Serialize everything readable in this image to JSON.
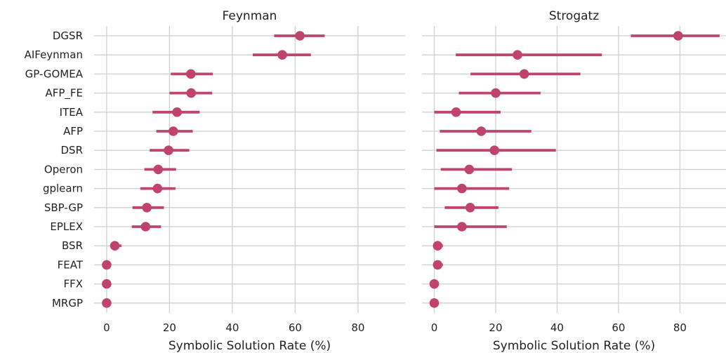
{
  "chart_data": {
    "type": "pointrange",
    "categories": [
      "DGSR",
      "AIFeynman",
      "GP-GOMEA",
      "AFP_FE",
      "ITEA",
      "AFP",
      "DSR",
      "Operon",
      "gplearn",
      "SBP-GP",
      "EPLEX",
      "BSR",
      "FEAT",
      "FFX",
      "MRGP"
    ],
    "xlabel": "Symbolic Solution Rate (%)",
    "xticks": [
      0,
      20,
      40,
      60,
      80
    ],
    "xlim": [
      -4,
      95
    ],
    "color": "#c0446a",
    "grid": true,
    "panels": [
      {
        "title": "Feynman",
        "points": [
          {
            "method": "DGSR",
            "value": 61.5,
            "low": 53.3,
            "high": 69.4
          },
          {
            "method": "AIFeynman",
            "value": 55.9,
            "low": 46.5,
            "high": 65.0
          },
          {
            "method": "GP-GOMEA",
            "value": 26.8,
            "low": 20.4,
            "high": 33.8
          },
          {
            "method": "AFP_FE",
            "value": 26.9,
            "low": 20.0,
            "high": 33.6
          },
          {
            "method": "ITEA",
            "value": 22.4,
            "low": 14.6,
            "high": 29.6
          },
          {
            "method": "AFP",
            "value": 21.2,
            "low": 15.8,
            "high": 27.4
          },
          {
            "method": "DSR",
            "value": 19.7,
            "low": 13.7,
            "high": 26.3
          },
          {
            "method": "Operon",
            "value": 16.4,
            "low": 12.0,
            "high": 22.1
          },
          {
            "method": "gplearn",
            "value": 16.2,
            "low": 10.7,
            "high": 21.9
          },
          {
            "method": "SBP-GP",
            "value": 12.8,
            "low": 8.2,
            "high": 18.2
          },
          {
            "method": "EPLEX",
            "value": 12.4,
            "low": 8.0,
            "high": 17.3
          },
          {
            "method": "BSR",
            "value": 2.6,
            "low": 1.6,
            "high": 4.7
          },
          {
            "method": "FEAT",
            "value": 0.0,
            "low": 0.0,
            "high": 0.0
          },
          {
            "method": "FFX",
            "value": 0.0,
            "low": 0.0,
            "high": 0.0
          },
          {
            "method": "MRGP",
            "value": 0.0,
            "low": 0.0,
            "high": 0.0
          }
        ]
      },
      {
        "title": "Strogatz",
        "points": [
          {
            "method": "DGSR",
            "value": 79.4,
            "low": 64.0,
            "high": 92.9
          },
          {
            "method": "AIFeynman",
            "value": 27.1,
            "low": 7.0,
            "high": 54.6
          },
          {
            "method": "GP-GOMEA",
            "value": 29.3,
            "low": 11.8,
            "high": 47.6
          },
          {
            "method": "AFP_FE",
            "value": 20.0,
            "low": 8.0,
            "high": 34.6
          },
          {
            "method": "ITEA",
            "value": 7.1,
            "low": 0.0,
            "high": 21.6
          },
          {
            "method": "AFP",
            "value": 15.3,
            "low": 1.8,
            "high": 31.6
          },
          {
            "method": "DSR",
            "value": 19.6,
            "low": 0.7,
            "high": 39.6
          },
          {
            "method": "Operon",
            "value": 11.4,
            "low": 2.1,
            "high": 25.3
          },
          {
            "method": "gplearn",
            "value": 9.0,
            "low": 0.0,
            "high": 24.4
          },
          {
            "method": "SBP-GP",
            "value": 11.7,
            "low": 3.4,
            "high": 20.9
          },
          {
            "method": "EPLEX",
            "value": 9.0,
            "low": 0.0,
            "high": 23.6
          },
          {
            "method": "BSR",
            "value": 1.1,
            "low": 0.0,
            "high": 2.8
          },
          {
            "method": "FEAT",
            "value": 1.1,
            "low": 0.0,
            "high": 2.8
          },
          {
            "method": "FFX",
            "value": 0.0,
            "low": 0.0,
            "high": 0.0
          },
          {
            "method": "MRGP",
            "value": 0.0,
            "low": 0.0,
            "high": 0.0
          }
        ]
      }
    ]
  }
}
